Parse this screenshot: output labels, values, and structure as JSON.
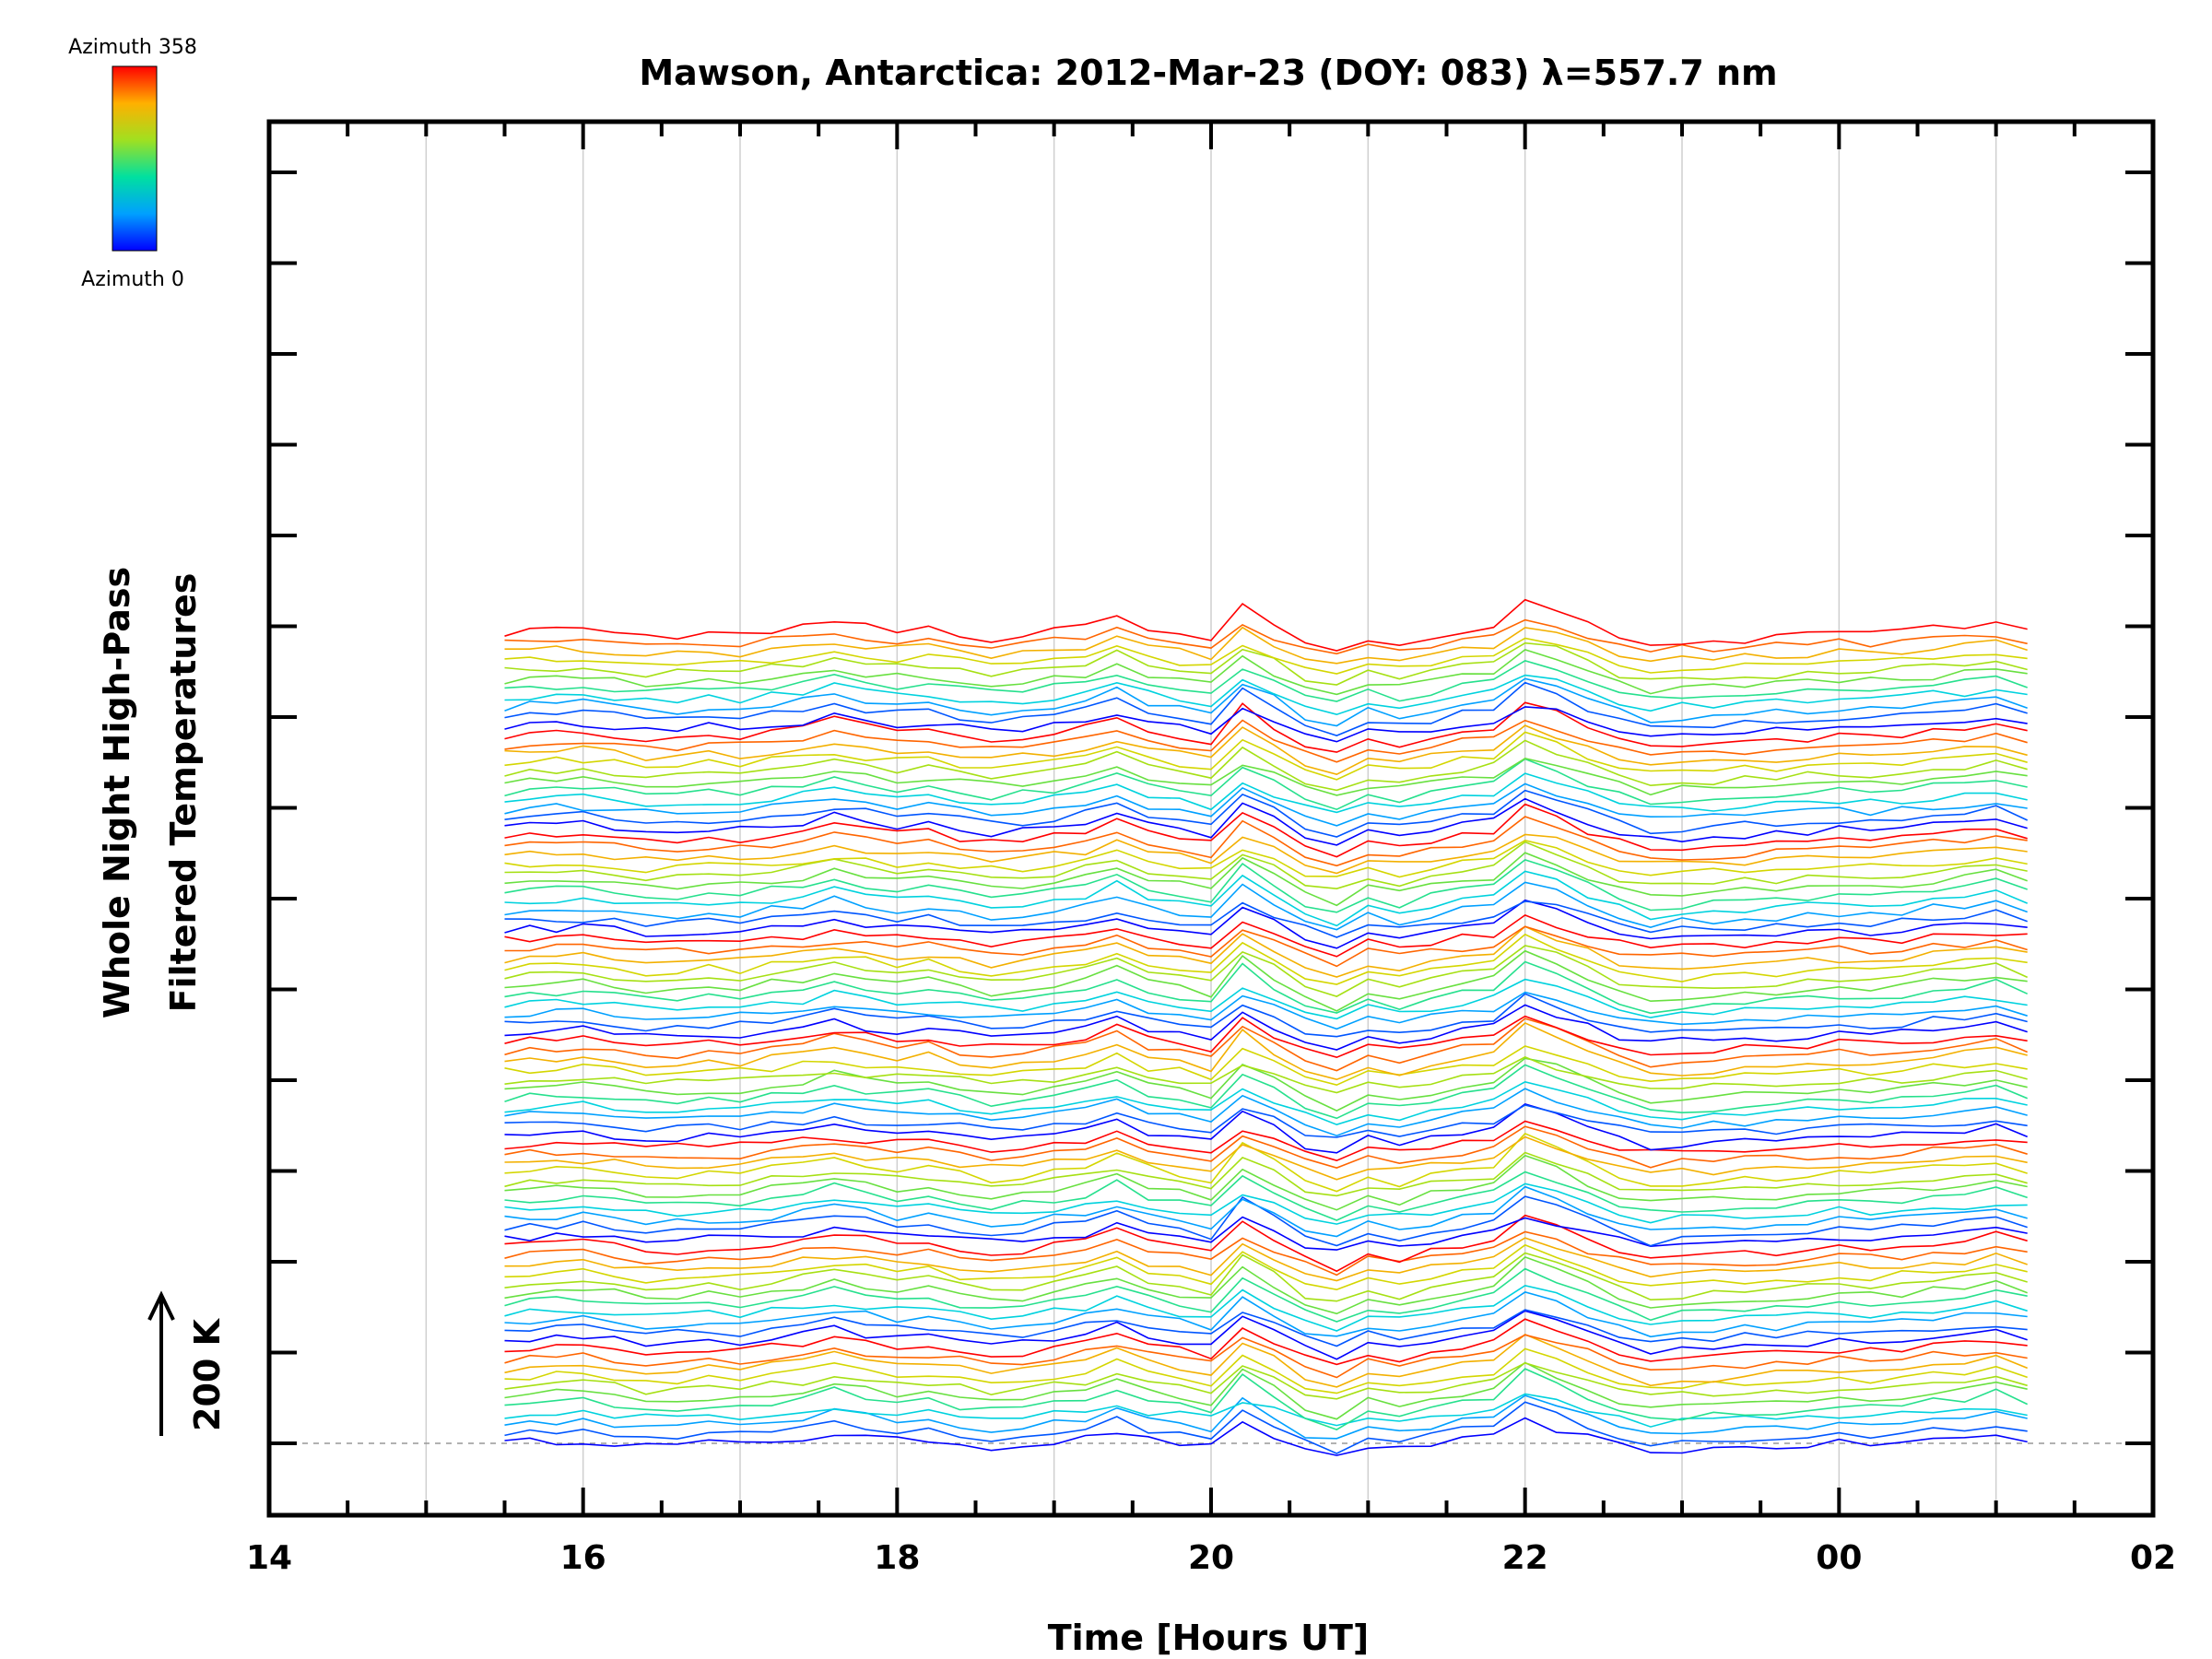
{
  "chart_data": {
    "type": "line",
    "title": "Mawson, Antarctica: 2012-Mar-23 (DOY: 083) λ=557.7 nm",
    "xlabel": "Time [Hours UT]",
    "ylabel_line1": "Whole Night High-Pass",
    "ylabel_line2": "Filtered Temperatures",
    "scale_bar_label": "200 K",
    "colorbar": {
      "top_label": "Azimuth 358",
      "bottom_label": "Azimuth 0",
      "min": 0,
      "max": 358
    },
    "x_ticks": [
      "14",
      "16",
      "18",
      "20",
      "22",
      "00",
      "02"
    ],
    "xlim_hours": [
      14,
      26
    ],
    "x_sample_hours": [
      15.5,
      15.66,
      15.83,
      16.0,
      16.2,
      16.4,
      16.6,
      16.8,
      17.0,
      17.2,
      17.4,
      17.6,
      17.8,
      18.0,
      18.2,
      18.4,
      18.6,
      18.8,
      19.0,
      19.2,
      19.4,
      19.6,
      19.8,
      20.0,
      20.2,
      20.4,
      20.6,
      20.8,
      21.0,
      21.2,
      21.4,
      21.6,
      21.8,
      22.0,
      22.2,
      22.4,
      22.6,
      22.8,
      23.0,
      23.2,
      23.4,
      23.6,
      23.8,
      24.0,
      24.2,
      24.4,
      24.6,
      24.8,
      25.0,
      25.2
    ],
    "mean_profile_K": [
      0,
      4,
      6,
      8,
      2,
      -6,
      -4,
      0,
      -2,
      6,
      12,
      24,
      14,
      6,
      10,
      0,
      -8,
      -4,
      4,
      12,
      30,
      8,
      0,
      -10,
      44,
      16,
      -16,
      -30,
      -6,
      -16,
      -4,
      6,
      14,
      54,
      36,
      14,
      -6,
      -20,
      -16,
      -14,
      -10,
      -8,
      -4,
      0,
      -2,
      2,
      8,
      12,
      20,
      6
    ],
    "offset_step_K": 10.5,
    "series_count": 88,
    "colors": [
      "#0000ff",
      "#0060ff",
      "#00b0ff",
      "#00e0d0",
      "#40e060",
      "#90e020",
      "#c8e000",
      "#f0c000",
      "#ff7000",
      "#ff0000"
    ]
  }
}
